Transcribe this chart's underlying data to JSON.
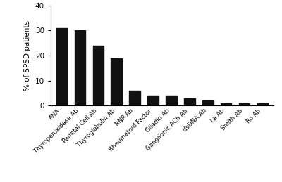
{
  "categories": [
    "ANA",
    "Thyroperoxidase Ab",
    "Parietal Cell Ab",
    "Thyroglobulin Ab",
    "RNP Ab",
    "Rheumatoid Factor",
    "Gliadin Ab",
    "Ganglionic ACh Ab",
    "dsDNA Ab",
    "La Ab",
    "Smith Ab",
    "Ro Ab"
  ],
  "values": [
    31,
    30,
    24,
    19,
    6,
    4,
    4,
    3,
    2,
    1,
    1,
    1
  ],
  "bar_color": "#111111",
  "ylabel": "% of SPSD patients",
  "ylim": [
    0,
    40
  ],
  "yticks": [
    0,
    10,
    20,
    30,
    40
  ],
  "figsize": [
    4.0,
    2.59
  ],
  "dpi": 100,
  "bar_width": 0.6,
  "xlabel_fontsize": 6.2,
  "ylabel_fontsize": 7.5,
  "ytick_fontsize": 7.5
}
